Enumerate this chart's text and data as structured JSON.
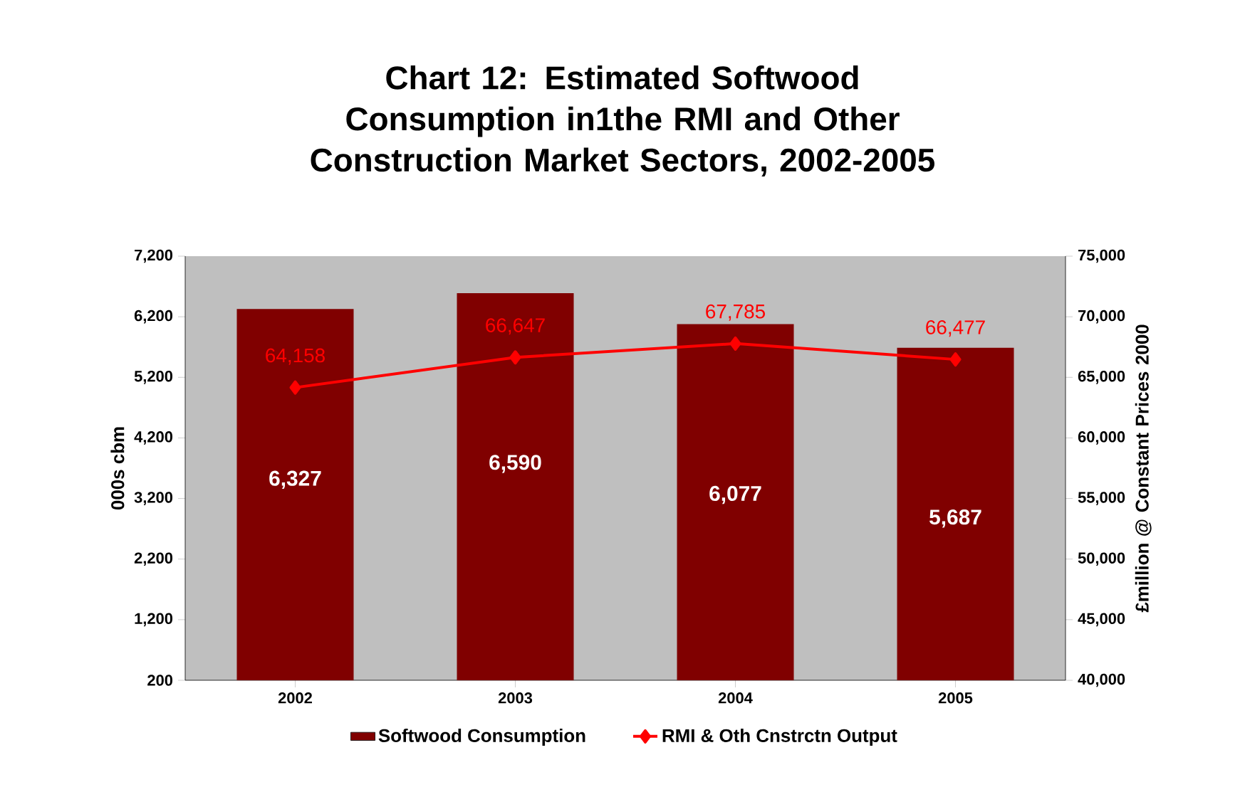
{
  "chart_data": {
    "type": "bar",
    "title": "Chart 12: Estimated Softwood Consumption in1the RMI and Other Construction Market Sectors, 2002-2005",
    "categories": [
      "2002",
      "2003",
      "2004",
      "2005"
    ],
    "ylabel": "000s cbm",
    "y2label": "£million @ Constant Prices 2000",
    "ylim": [
      200,
      7200
    ],
    "yticks": [
      {
        "value": 200,
        "label": "200"
      },
      {
        "value": 1200,
        "label": "1,200"
      },
      {
        "value": 2200,
        "label": "2,200"
      },
      {
        "value": 3200,
        "label": "3,200"
      },
      {
        "value": 4200,
        "label": "4,200"
      },
      {
        "value": 5200,
        "label": "5,200"
      },
      {
        "value": 6200,
        "label": "6,200"
      },
      {
        "value": 7200,
        "label": "7,200"
      }
    ],
    "y2lim": [
      40000,
      75000
    ],
    "y2ticks": [
      {
        "value": 40000,
        "label": "40,000"
      },
      {
        "value": 45000,
        "label": "45,000"
      },
      {
        "value": 50000,
        "label": "50,000"
      },
      {
        "value": 55000,
        "label": "55,000"
      },
      {
        "value": 60000,
        "label": "60,000"
      },
      {
        "value": 65000,
        "label": "65,000"
      },
      {
        "value": 70000,
        "label": "70,000"
      },
      {
        "value": 75000,
        "label": "75,000"
      }
    ],
    "series": [
      {
        "name": "Softwood Consumption",
        "color": "#800000",
        "values": [
          6327,
          6590,
          6077,
          5687
        ],
        "value_labels": [
          "6,327",
          "6,590",
          "6,077",
          "5,687"
        ]
      },
      {
        "name": "RMI & Oth Cnstrctn Output",
        "type": "line",
        "axis": "y2",
        "color": "#ff0000",
        "values": [
          64158,
          66647,
          67785,
          66477
        ],
        "value_labels": [
          "64,158",
          "66,647",
          "67,785",
          "66,477"
        ]
      }
    ],
    "marker": "diamond",
    "legend": "bottom",
    "grid": false
  }
}
